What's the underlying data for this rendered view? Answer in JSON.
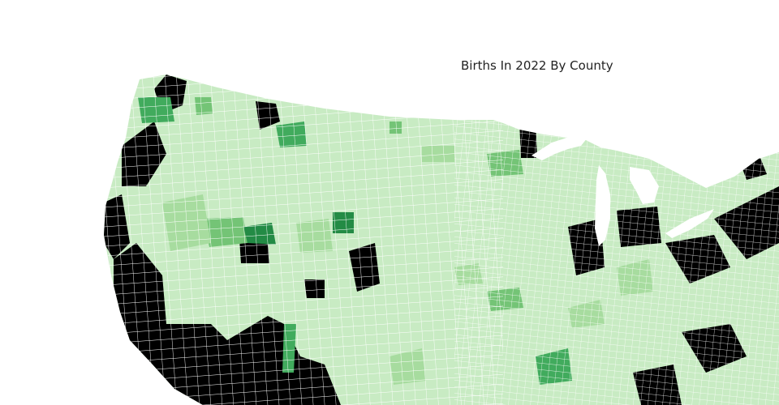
{
  "title": "Births In 2022 By County",
  "palette": {
    "background": "#ffffff",
    "county_border": "#ffffff",
    "lightest": "#c8ebc3",
    "light": "#a7dc9f",
    "medium": "#74c476",
    "medium_dark": "#41ab5d",
    "dark": "#238b45",
    "highest": "#000000"
  },
  "map": {
    "type": "choropleth",
    "region": "United States counties (western and central portion visible)"
  }
}
